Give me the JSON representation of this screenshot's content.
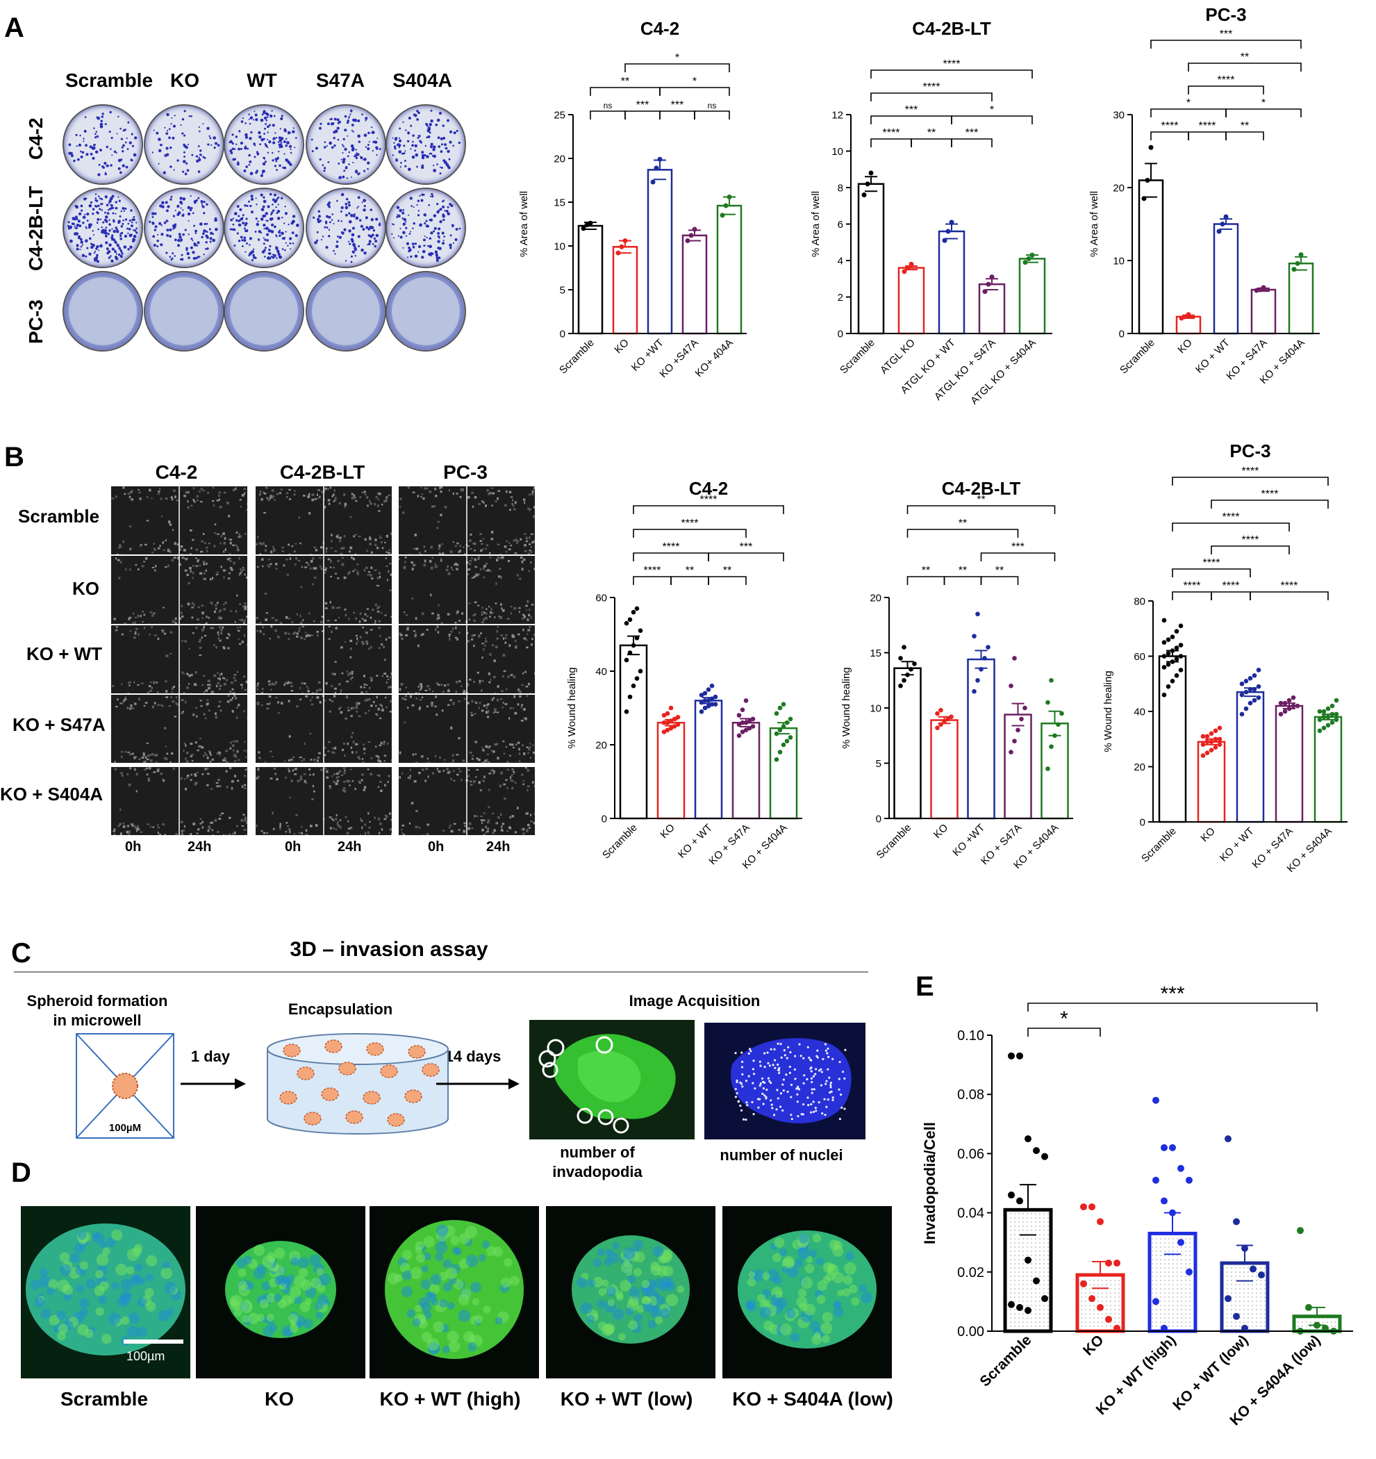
{
  "panels": {
    "A": "A",
    "B": "B",
    "C": "C",
    "D": "D",
    "E": "E"
  },
  "panelA": {
    "columns": [
      "Scramble",
      "KO",
      "WT",
      "S47A",
      "S404A"
    ],
    "rows": [
      "C4-2",
      "C4-2B-LT",
      "PC-3"
    ],
    "colors": {
      "dish_bg": "#dfe3ef",
      "colony": "#2a2fb5",
      "rim": "#3f48a8"
    }
  },
  "panelB": {
    "groups": [
      "C4-2",
      "C4-2B-LT",
      "PC-3"
    ],
    "rows": [
      "Scramble",
      "KO",
      "KO + WT",
      "KO + S47A",
      "KO + S404A"
    ],
    "times": [
      "0h",
      "24h"
    ]
  },
  "panelC": {
    "title": "3D – invasion assay",
    "step1": [
      "Spheroid formation",
      "in microwell"
    ],
    "well_label": "100µM",
    "arrow1": "1 day",
    "step2": "Encapsulation",
    "arrow2": "14 days",
    "step3": "Image Acquisition",
    "cap1": [
      "number of",
      "invadopodia"
    ],
    "cap2": "number of nuclei"
  },
  "panelD": {
    "labels": [
      "Scramble",
      "KO",
      "KO + WT (high)",
      "KO + WT (low)",
      "KO + S404A (low)"
    ],
    "scalebar": "100µm"
  },
  "chart_data": [
    {
      "id": "A1",
      "type": "bar",
      "title": "C4-2",
      "ylabel": "% Area of well",
      "categories": [
        "Scramble",
        "KO",
        "KO +WT",
        "KO +S47A",
        "KO+ 404A"
      ],
      "colors": [
        "#000000",
        "#e8231f",
        "#1d2c9c",
        "#6c1e63",
        "#1e7a21"
      ],
      "values": [
        12.3,
        9.9,
        18.7,
        11.2,
        14.6
      ],
      "errors": [
        0.4,
        0.7,
        1.1,
        0.6,
        1.0
      ],
      "points": [
        [
          12.0,
          12.4,
          12.6
        ],
        [
          9.2,
          9.9,
          10.6
        ],
        [
          17.3,
          18.9,
          19.9
        ],
        [
          10.6,
          11.2,
          11.9
        ],
        [
          13.5,
          14.6,
          15.6
        ]
      ],
      "ylim": [
        0,
        25
      ],
      "yticks": [
        0,
        5,
        10,
        15,
        20,
        25
      ],
      "sig": [
        {
          "a": 1,
          "b": 2,
          "t": "ns",
          "lvl": 0
        },
        {
          "a": 2,
          "b": 3,
          "t": "***",
          "lvl": 0
        },
        {
          "a": 3,
          "b": 4,
          "t": "***",
          "lvl": 0
        },
        {
          "a": 4,
          "b": 5,
          "t": "ns",
          "lvl": 0
        },
        {
          "a": 1,
          "b": 3,
          "t": "**",
          "lvl": 1
        },
        {
          "a": 3,
          "b": 5,
          "t": "*",
          "lvl": 1
        },
        {
          "a": 2,
          "b": 5,
          "t": "*",
          "lvl": 2
        }
      ]
    },
    {
      "id": "A2",
      "type": "bar",
      "title": "C4-2B-LT",
      "ylabel": "% Area of well",
      "categories": [
        "Scramble",
        "ATGL KO",
        "ATGL KO + WT",
        "ATGL KO + S47A",
        "ATGL KO + S404A"
      ],
      "colors": [
        "#000000",
        "#e8231f",
        "#1d2c9c",
        "#6c1e63",
        "#1e7a21"
      ],
      "values": [
        8.2,
        3.6,
        5.6,
        2.7,
        4.1
      ],
      "errors": [
        0.4,
        0.1,
        0.4,
        0.3,
        0.2
      ],
      "points": [
        [
          7.6,
          8.2,
          8.8
        ],
        [
          3.4,
          3.6,
          3.8
        ],
        [
          5.1,
          5.6,
          6.1
        ],
        [
          2.3,
          2.7,
          3.1
        ],
        [
          3.9,
          4.1,
          4.3
        ]
      ],
      "ylim": [
        0,
        12
      ],
      "yticks": [
        0,
        2,
        4,
        6,
        8,
        10,
        12
      ],
      "sig": [
        {
          "a": 1,
          "b": 2,
          "t": "****",
          "lvl": 0
        },
        {
          "a": 2,
          "b": 3,
          "t": "**",
          "lvl": 0
        },
        {
          "a": 3,
          "b": 4,
          "t": "***",
          "lvl": 0
        },
        {
          "a": 1,
          "b": 3,
          "t": "***",
          "lvl": 1
        },
        {
          "a": 3,
          "b": 5,
          "t": "*",
          "lvl": 1
        },
        {
          "a": 1,
          "b": 4,
          "t": "****",
          "lvl": 2
        },
        {
          "a": 1,
          "b": 5,
          "t": "****",
          "lvl": 3
        }
      ]
    },
    {
      "id": "A3",
      "type": "bar",
      "title": "PC-3",
      "ylabel": "% Area of well",
      "categories": [
        "Scramble",
        "KO",
        "KO + WT",
        "KO + S47A",
        "KO + S404A"
      ],
      "colors": [
        "#000000",
        "#e8231f",
        "#1d2c9c",
        "#6c1e63",
        "#1e7a21"
      ],
      "values": [
        21.0,
        2.3,
        15.0,
        6.0,
        9.6
      ],
      "errors": [
        2.3,
        0.2,
        0.7,
        0.2,
        0.9
      ],
      "points": [
        [
          18.5,
          21.0,
          25.5
        ],
        [
          2.1,
          2.3,
          2.6
        ],
        [
          14.0,
          15.0,
          16.0
        ],
        [
          5.9,
          6.0,
          6.3
        ],
        [
          8.8,
          9.6,
          10.8
        ]
      ],
      "ylim": [
        0,
        30
      ],
      "yticks": [
        0,
        10,
        20,
        30
      ],
      "sig": [
        {
          "a": 1,
          "b": 2,
          "t": "****",
          "lvl": 0
        },
        {
          "a": 2,
          "b": 3,
          "t": "****",
          "lvl": 0
        },
        {
          "a": 3,
          "b": 4,
          "t": "**",
          "lvl": 0
        },
        {
          "a": 1,
          "b": 3,
          "t": "*",
          "lvl": 1
        },
        {
          "a": 3,
          "b": 5,
          "t": "*",
          "lvl": 1
        },
        {
          "a": 2,
          "b": 4,
          "t": "****",
          "lvl": 2
        },
        {
          "a": 2,
          "b": 5,
          "t": "**",
          "lvl": 3
        },
        {
          "a": 1,
          "b": 5,
          "t": "***",
          "lvl": 4
        }
      ]
    },
    {
      "id": "B1",
      "type": "bar",
      "title": "C4-2",
      "ylabel": "% Wound healing",
      "categories": [
        "Scramble",
        "KO",
        "KO + WT",
        "KO + S47A",
        "KO + S404A"
      ],
      "colors": [
        "#000000",
        "#e8231f",
        "#1d2c9c",
        "#6c1e63",
        "#1e7a21"
      ],
      "values": [
        47,
        26,
        32,
        26,
        24.5
      ],
      "errors": [
        2.5,
        0.8,
        0.8,
        1.1,
        1.5
      ],
      "points": [
        [
          29,
          33,
          36,
          38,
          40,
          43,
          45,
          47,
          49,
          51,
          53,
          54,
          56,
          57
        ],
        [
          23.5,
          24,
          24.5,
          25,
          25.5,
          26,
          26,
          26.5,
          27,
          27.5,
          28,
          28.5,
          30
        ],
        [
          29,
          30,
          30.5,
          31,
          31,
          31.5,
          32,
          32,
          32.5,
          33,
          33.5,
          34,
          35,
          36
        ],
        [
          22.5,
          23.5,
          24,
          24.5,
          25,
          25.5,
          26,
          26,
          26.5,
          27,
          28,
          29.5,
          32
        ],
        [
          16,
          18,
          20,
          21,
          22,
          23,
          24,
          25,
          26,
          27,
          28.5,
          30,
          31
        ]
      ],
      "ylim": [
        0,
        60
      ],
      "yticks": [
        0,
        20,
        40,
        60
      ],
      "sig": [
        {
          "a": 1,
          "b": 2,
          "t": "****",
          "lvl": 0
        },
        {
          "a": 2,
          "b": 3,
          "t": "**",
          "lvl": 0
        },
        {
          "a": 3,
          "b": 4,
          "t": "**",
          "lvl": 0
        },
        {
          "a": 1,
          "b": 3,
          "t": "****",
          "lvl": 1
        },
        {
          "a": 3,
          "b": 5,
          "t": "***",
          "lvl": 1
        },
        {
          "a": 1,
          "b": 4,
          "t": "****",
          "lvl": 2
        },
        {
          "a": 1,
          "b": 5,
          "t": "****",
          "lvl": 3
        }
      ]
    },
    {
      "id": "B2",
      "type": "bar",
      "title": "C4-2B-LT",
      "ylabel": "% Wound healing",
      "categories": [
        "Scramble",
        "KO",
        "KO +WT",
        "KO + S47A",
        "KO + S404A"
      ],
      "colors": [
        "#000000",
        "#e8231f",
        "#1d2c9c",
        "#6c1e63",
        "#1e7a21"
      ],
      "values": [
        13.6,
        8.9,
        14.4,
        9.4,
        8.6
      ],
      "errors": [
        0.6,
        0.3,
        0.8,
        1.0,
        1.1
      ],
      "points": [
        [
          12.0,
          12.5,
          13.0,
          13.5,
          14.0,
          14.5,
          15.5
        ],
        [
          8.2,
          8.5,
          8.8,
          9.0,
          9.2,
          9.5,
          9.8
        ],
        [
          11.5,
          12.5,
          13.5,
          14.5,
          15.5,
          16.5,
          18.5
        ],
        [
          6.0,
          7.0,
          8.0,
          9.0,
          10.0,
          12.0,
          14.5
        ],
        [
          4.5,
          6.5,
          7.5,
          8.5,
          9.5,
          10.5,
          12.5
        ]
      ],
      "ylim": [
        0,
        20
      ],
      "yticks": [
        0,
        5,
        10,
        15,
        20
      ],
      "sig": [
        {
          "a": 1,
          "b": 2,
          "t": "**",
          "lvl": 0
        },
        {
          "a": 2,
          "b": 3,
          "t": "**",
          "lvl": 0
        },
        {
          "a": 3,
          "b": 4,
          "t": "**",
          "lvl": 0
        },
        {
          "a": 3,
          "b": 5,
          "t": "***",
          "lvl": 1
        },
        {
          "a": 1,
          "b": 4,
          "t": "**",
          "lvl": 2
        },
        {
          "a": 1,
          "b": 5,
          "t": "**",
          "lvl": 3
        }
      ]
    },
    {
      "id": "B3",
      "type": "bar",
      "title": "PC-3",
      "ylabel": "% Wound healing",
      "categories": [
        "Scramble",
        "KO",
        "KO + WT",
        "KO + S47A",
        "KO + S404A"
      ],
      "colors": [
        "#000000",
        "#e8231f",
        "#1d2c9c",
        "#6c1e63",
        "#1e7a21"
      ],
      "values": [
        60,
        29,
        47,
        42,
        38
      ],
      "errors": [
        2.0,
        1.0,
        1.5,
        1.0,
        1.0
      ],
      "points": [
        [
          46,
          49,
          51,
          53,
          55,
          56,
          57,
          58,
          59,
          60,
          60,
          61,
          62,
          63,
          64,
          65,
          66,
          67,
          69,
          71,
          73
        ],
        [
          24,
          25,
          26,
          27,
          28,
          28,
          29,
          29,
          30,
          30,
          31,
          31,
          32,
          33,
          34
        ],
        [
          39,
          41,
          43,
          44,
          45,
          46,
          47,
          48,
          48,
          49,
          50,
          51,
          52,
          53,
          55
        ],
        [
          39,
          40,
          41,
          42,
          42,
          43,
          43,
          44,
          45
        ],
        [
          33,
          34,
          35,
          36,
          37,
          37,
          38,
          38,
          39,
          39,
          40,
          40,
          41,
          42,
          44
        ]
      ],
      "ylim": [
        0,
        80
      ],
      "yticks": [
        0,
        20,
        40,
        60,
        80
      ],
      "sig": [
        {
          "a": 1,
          "b": 2,
          "t": "****",
          "lvl": 0
        },
        {
          "a": 2,
          "b": 3,
          "t": "****",
          "lvl": 0
        },
        {
          "a": 3,
          "b": 5,
          "t": "****",
          "lvl": 0
        },
        {
          "a": 1,
          "b": 3,
          "t": "****",
          "lvl": 1
        },
        {
          "a": 2,
          "b": 4,
          "t": "****",
          "lvl": 2
        },
        {
          "a": 1,
          "b": 4,
          "t": "****",
          "lvl": 3
        },
        {
          "a": 2,
          "b": 5,
          "t": "****",
          "lvl": 4
        },
        {
          "a": 1,
          "b": 5,
          "t": "****",
          "lvl": 5
        }
      ]
    },
    {
      "id": "E",
      "type": "bar",
      "title": "",
      "ylabel": "Invadopodia/Cell",
      "categories": [
        "Scramble",
        "KO",
        "KO + WT (high)",
        "KO + WT (low)",
        "KO + S404A (low)"
      ],
      "colors": [
        "#000000",
        "#e8231f",
        "#1f2ee0",
        "#1d2c9c",
        "#1e7a21"
      ],
      "values": [
        0.041,
        0.019,
        0.033,
        0.023,
        0.005
      ],
      "errors": [
        0.0085,
        0.0045,
        0.007,
        0.006,
        0.003
      ],
      "points": [
        [
          0.093,
          0.093,
          0.065,
          0.061,
          0.059,
          0.046,
          0.044,
          0.024,
          0.017,
          0.011,
          0.009,
          0.008,
          0.007
        ],
        [
          0.042,
          0.042,
          0.037,
          0.023,
          0.023,
          0.016,
          0.011,
          0.008,
          0.004,
          0.001
        ],
        [
          0.078,
          0.062,
          0.062,
          0.055,
          0.051,
          0.051,
          0.044,
          0.04,
          0.03,
          0.02,
          0.01,
          0.001
        ],
        [
          0.065,
          0.037,
          0.028,
          0.021,
          0.019,
          0.011,
          0.005,
          0.001
        ],
        [
          0.034,
          0.008,
          0.002,
          0.001,
          0.0,
          0.0
        ]
      ],
      "ylim": [
        0,
        0.1
      ],
      "yticks": [
        0.0,
        0.02,
        0.04,
        0.06,
        0.08,
        0.1
      ],
      "sig": [
        {
          "a": 1,
          "b": 2,
          "t": "*",
          "lvl": 0
        },
        {
          "a": 1,
          "b": 5,
          "t": "***",
          "lvl": 1
        }
      ]
    }
  ]
}
